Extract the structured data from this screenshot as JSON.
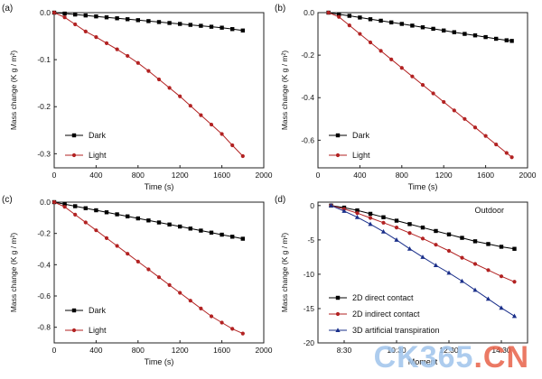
{
  "chart_data": [
    {
      "panel_label": "(a)",
      "type": "line",
      "xlabel": "Time (s)",
      "ylabel": "Mass change (K g / m²)",
      "xlim": [
        0,
        2000
      ],
      "ylim": [
        -0.33,
        0.0
      ],
      "xticks": [
        "0",
        "400",
        "800",
        "1200",
        "1600",
        "2000"
      ],
      "yticks": [
        "0.0",
        "-0.1",
        "-0.2",
        "-0.3"
      ],
      "legend_position": "bottom-left",
      "series": [
        {
          "name": "Dark",
          "color": "#000000",
          "marker": "square",
          "x": [
            0,
            100,
            200,
            300,
            400,
            500,
            600,
            700,
            800,
            900,
            1000,
            1100,
            1200,
            1300,
            1400,
            1500,
            1600,
            1700,
            1800
          ],
          "y": [
            0,
            -0.002,
            -0.004,
            -0.006,
            -0.008,
            -0.01,
            -0.012,
            -0.014,
            -0.016,
            -0.018,
            -0.02,
            -0.022,
            -0.024,
            -0.026,
            -0.028,
            -0.03,
            -0.032,
            -0.035,
            -0.038
          ]
        },
        {
          "name": "Light",
          "color": "#b22222",
          "marker": "circle",
          "x": [
            0,
            100,
            200,
            300,
            400,
            500,
            600,
            700,
            800,
            900,
            1000,
            1100,
            1200,
            1300,
            1400,
            1500,
            1600,
            1700,
            1800
          ],
          "y": [
            0,
            -0.01,
            -0.025,
            -0.04,
            -0.052,
            -0.065,
            -0.078,
            -0.092,
            -0.107,
            -0.124,
            -0.142,
            -0.16,
            -0.178,
            -0.198,
            -0.218,
            -0.238,
            -0.258,
            -0.282,
            -0.305
          ]
        }
      ]
    },
    {
      "panel_label": "(b)",
      "type": "line",
      "xlabel": "Time (s)",
      "ylabel": "Mass change (K g / m²)",
      "xlim": [
        0,
        2000
      ],
      "ylim": [
        -0.73,
        0.0
      ],
      "xticks": [
        "0",
        "400",
        "800",
        "1200",
        "1600",
        "2000"
      ],
      "yticks": [
        "0.0",
        "-0.2",
        "-0.4",
        "-0.6"
      ],
      "legend_position": "bottom-left",
      "series": [
        {
          "name": "Dark",
          "color": "#000000",
          "marker": "square",
          "x": [
            100,
            200,
            300,
            400,
            500,
            600,
            700,
            800,
            900,
            1000,
            1100,
            1200,
            1300,
            1400,
            1500,
            1600,
            1700,
            1800,
            1850
          ],
          "y": [
            0,
            -0.008,
            -0.015,
            -0.023,
            -0.031,
            -0.038,
            -0.046,
            -0.053,
            -0.061,
            -0.069,
            -0.076,
            -0.084,
            -0.092,
            -0.1,
            -0.107,
            -0.115,
            -0.123,
            -0.13,
            -0.133
          ]
        },
        {
          "name": "Light",
          "color": "#b22222",
          "marker": "circle",
          "x": [
            100,
            200,
            300,
            400,
            500,
            600,
            700,
            800,
            900,
            1000,
            1100,
            1200,
            1300,
            1400,
            1500,
            1600,
            1700,
            1800,
            1850
          ],
          "y": [
            0,
            -0.02,
            -0.06,
            -0.1,
            -0.14,
            -0.18,
            -0.22,
            -0.26,
            -0.3,
            -0.34,
            -0.38,
            -0.42,
            -0.46,
            -0.5,
            -0.54,
            -0.58,
            -0.62,
            -0.66,
            -0.68
          ]
        }
      ]
    },
    {
      "panel_label": "(c)",
      "type": "line",
      "xlabel": "Time (s)",
      "ylabel": "Mass change (K g / m²)",
      "xlim": [
        0,
        2000
      ],
      "ylim": [
        -0.9,
        0.0
      ],
      "xticks": [
        "0",
        "400",
        "800",
        "1200",
        "1600",
        "2000"
      ],
      "yticks": [
        "0.0",
        "-0.2",
        "-0.4",
        "-0.6",
        "-0.8"
      ],
      "legend_position": "bottom-left",
      "series": [
        {
          "name": "Dark",
          "color": "#000000",
          "marker": "square",
          "x": [
            0,
            100,
            200,
            300,
            400,
            500,
            600,
            700,
            800,
            900,
            1000,
            1100,
            1200,
            1300,
            1400,
            1500,
            1600,
            1700,
            1800
          ],
          "y": [
            0,
            -0.013,
            -0.026,
            -0.039,
            -0.052,
            -0.065,
            -0.078,
            -0.091,
            -0.104,
            -0.117,
            -0.13,
            -0.143,
            -0.156,
            -0.169,
            -0.182,
            -0.195,
            -0.208,
            -0.221,
            -0.234
          ]
        },
        {
          "name": "Light",
          "color": "#b22222",
          "marker": "circle",
          "x": [
            0,
            100,
            200,
            300,
            400,
            500,
            600,
            700,
            800,
            900,
            1000,
            1100,
            1200,
            1300,
            1400,
            1500,
            1600,
            1700,
            1800
          ],
          "y": [
            0,
            -0.03,
            -0.08,
            -0.13,
            -0.18,
            -0.23,
            -0.28,
            -0.33,
            -0.38,
            -0.43,
            -0.48,
            -0.53,
            -0.58,
            -0.63,
            -0.68,
            -0.73,
            -0.77,
            -0.81,
            -0.84
          ]
        }
      ]
    },
    {
      "panel_label": "(d)",
      "type": "line",
      "annotation": "Outdoor",
      "xlabel": "Moment",
      "ylabel": "Mass change (K g / m²)",
      "xlim": [
        7.5,
        15.5
      ],
      "ylim": [
        -20,
        0.5
      ],
      "xticks": [
        "8:30",
        "10:30",
        "12:30",
        "14:30"
      ],
      "xtick_values": [
        8.5,
        10.5,
        12.5,
        14.5
      ],
      "yticks": [
        "0",
        "-5",
        "-10",
        "-15",
        "-20"
      ],
      "legend_position": "bottom-left",
      "series": [
        {
          "name": "2D direct contact",
          "color": "#000000",
          "marker": "square",
          "x": [
            8,
            8.5,
            9,
            9.5,
            10,
            10.5,
            11,
            11.5,
            12,
            12.5,
            13,
            13.5,
            14,
            14.5,
            15
          ],
          "y": [
            0,
            -0.3,
            -0.7,
            -1.2,
            -1.7,
            -2.2,
            -2.7,
            -3.2,
            -3.7,
            -4.2,
            -4.7,
            -5.2,
            -5.6,
            -6.0,
            -6.3
          ]
        },
        {
          "name": "2D indirect contact",
          "color": "#b22222",
          "marker": "circle",
          "x": [
            8,
            8.5,
            9,
            9.5,
            10,
            10.5,
            11,
            11.5,
            12,
            12.5,
            13,
            13.5,
            14,
            14.5,
            15
          ],
          "y": [
            0,
            -0.5,
            -1.1,
            -1.8,
            -2.5,
            -3.2,
            -4.0,
            -4.8,
            -5.7,
            -6.6,
            -7.6,
            -8.5,
            -9.4,
            -10.3,
            -11.1
          ]
        },
        {
          "name": "3D artificial transpiration",
          "color": "#1a2f8a",
          "marker": "triangle",
          "x": [
            8,
            8.5,
            9,
            9.5,
            10,
            10.5,
            11,
            11.5,
            12,
            12.5,
            13,
            13.5,
            14,
            14.5,
            15
          ],
          "y": [
            0,
            -0.8,
            -1.7,
            -2.7,
            -3.8,
            -5.0,
            -6.3,
            -7.5,
            -8.7,
            -9.8,
            -11.0,
            -12.3,
            -13.6,
            -14.9,
            -16.1
          ]
        }
      ]
    }
  ],
  "watermark": {
    "prefix": "CK365",
    "suffix": ".CN"
  }
}
